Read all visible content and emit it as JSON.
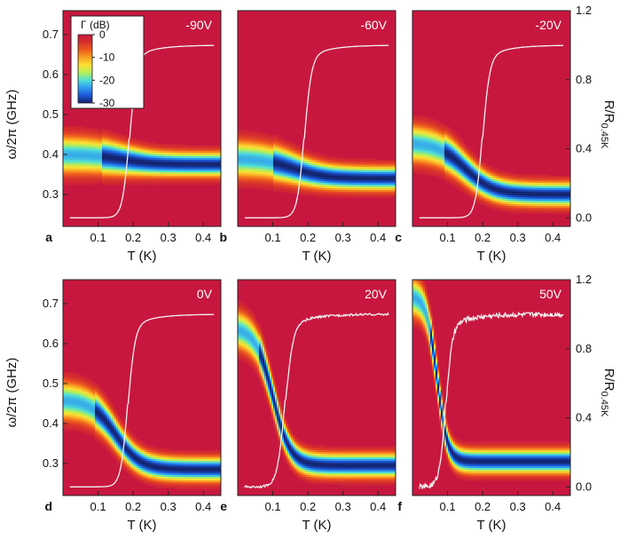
{
  "colors": {
    "background": "#C8173F",
    "trace": "#f2f2f2",
    "colormap": [
      "#14236e",
      "#1a56d6",
      "#2f9bf0",
      "#4fe0d6",
      "#b5ef57",
      "#fde033",
      "#f9a121",
      "#ed5a1e",
      "#d72f2c",
      "#c8173f"
    ]
  },
  "labels": {
    "ylabel_left": "ω/2π (GHz)",
    "ylabel_right_main": "R/R",
    "ylabel_right_sub": "0.45K",
    "xlabel": "T (K)"
  },
  "colorbar": {
    "title": "Γ (dB)",
    "range": [
      -30,
      0
    ],
    "ticks": [
      "0",
      "-10",
      "-20",
      "-30"
    ]
  },
  "chart_data": [
    {
      "type": "heatmap",
      "panel": "a",
      "voltage_label": "-90V",
      "xlabel": "T (K)",
      "ylabel": "ω/2π (GHz)",
      "y2label": "R/R0.45K",
      "xlim": [
        0.0,
        0.45
      ],
      "ylim": [
        0.22,
        0.76
      ],
      "y2lim": [
        -0.05,
        1.2
      ],
      "xticks": [
        "0.1",
        "0.2",
        "0.3",
        "0.4"
      ],
      "yticks": [
        "0.3",
        "0.4",
        "0.5",
        "0.6",
        "0.7"
      ],
      "y2ticks": [
        "0.0",
        "0.4",
        "0.8",
        "1.2"
      ],
      "resonance": {
        "f_low": 0.4,
        "f_high": 0.375,
        "Tc": 0.17,
        "width": 0.045,
        "depth": -30,
        "low_T_band": 0.11
      },
      "resistance": {
        "Tc": 0.19,
        "width": 0.01,
        "noise": 0.0
      },
      "colorbar": true
    },
    {
      "type": "heatmap",
      "panel": "b",
      "voltage_label": "-60V",
      "xlabel": "T (K)",
      "ylabel": "ω/2π (GHz)",
      "y2label": "R/R0.45K",
      "xlim": [
        0.0,
        0.45
      ],
      "ylim": [
        0.22,
        0.76
      ],
      "y2lim": [
        -0.05,
        1.2
      ],
      "xticks": [
        "0.1",
        "0.2",
        "0.3",
        "0.4"
      ],
      "yticks": [
        "0.3",
        "0.4",
        "0.5",
        "0.6",
        "0.7"
      ],
      "y2ticks": [
        "0.0",
        "0.4",
        "0.8",
        "1.2"
      ],
      "resonance": {
        "f_low": 0.39,
        "f_high": 0.34,
        "Tc": 0.16,
        "width": 0.045,
        "depth": -30,
        "low_T_band": 0.1
      },
      "resistance": {
        "Tc": 0.19,
        "width": 0.01,
        "noise": 0.0
      },
      "colorbar": false
    },
    {
      "type": "heatmap",
      "panel": "c",
      "voltage_label": "-20V",
      "xlabel": "T (K)",
      "ylabel": "ω/2π (GHz)",
      "y2label": "R/R0.45K",
      "xlim": [
        0.0,
        0.45
      ],
      "ylim": [
        0.22,
        0.76
      ],
      "y2lim": [
        -0.05,
        1.2
      ],
      "xticks": [
        "0.1",
        "0.2",
        "0.3",
        "0.4"
      ],
      "yticks": [
        "0.3",
        "0.4",
        "0.5",
        "0.6",
        "0.7"
      ],
      "y2ticks": [
        "0.0",
        "0.4",
        "0.8",
        "1.2"
      ],
      "resonance": {
        "f_low": 0.43,
        "f_high": 0.3,
        "Tc": 0.15,
        "width": 0.04,
        "depth": -30,
        "low_T_band": 0.09
      },
      "resistance": {
        "Tc": 0.2,
        "width": 0.01,
        "noise": 0.0
      },
      "colorbar": false
    },
    {
      "type": "heatmap",
      "panel": "d",
      "voltage_label": "0V",
      "xlabel": "T (K)",
      "ylabel": "ω/2π (GHz)",
      "y2label": "R/R0.45K",
      "xlim": [
        0.0,
        0.45
      ],
      "ylim": [
        0.22,
        0.76
      ],
      "y2lim": [
        -0.05,
        1.2
      ],
      "xticks": [
        "0.1",
        "0.2",
        "0.3",
        "0.4"
      ],
      "yticks": [
        "0.3",
        "0.4",
        "0.5",
        "0.6",
        "0.7"
      ],
      "y2ticks": [
        "0.0",
        "0.4",
        "0.8",
        "1.2"
      ],
      "resonance": {
        "f_low": 0.46,
        "f_high": 0.285,
        "Tc": 0.15,
        "width": 0.035,
        "depth": -30,
        "low_T_band": 0.09
      },
      "resistance": {
        "Tc": 0.185,
        "width": 0.01,
        "noise": 0.0
      },
      "colorbar": false
    },
    {
      "type": "heatmap",
      "panel": "e",
      "voltage_label": "20V",
      "xlabel": "T (K)",
      "ylabel": "ω/2π (GHz)",
      "y2label": "R/R0.45K",
      "xlim": [
        0.0,
        0.45
      ],
      "ylim": [
        0.22,
        0.76
      ],
      "y2lim": [
        -0.05,
        1.2
      ],
      "xticks": [
        "0.1",
        "0.2",
        "0.3",
        "0.4"
      ],
      "yticks": [
        "0.3",
        "0.4",
        "0.5",
        "0.6",
        "0.7"
      ],
      "y2ticks": [
        "0.0",
        "0.4",
        "0.8",
        "1.2"
      ],
      "resonance": {
        "f_low": 0.64,
        "f_high": 0.295,
        "Tc": 0.1,
        "width": 0.025,
        "depth": -30,
        "low_T_band": 0.06
      },
      "resistance": {
        "Tc": 0.135,
        "width": 0.011,
        "noise": 0.006
      },
      "colorbar": false
    },
    {
      "type": "heatmap",
      "panel": "f",
      "voltage_label": "50V",
      "xlabel": "T (K)",
      "ylabel": "ω/2π (GHz)",
      "y2label": "R/R0.45K",
      "xlim": [
        0.0,
        0.45
      ],
      "ylim": [
        0.22,
        0.76
      ],
      "y2lim": [
        -0.05,
        1.2
      ],
      "xticks": [
        "0.1",
        "0.2",
        "0.3",
        "0.4"
      ],
      "yticks": [
        "0.3",
        "0.4",
        "0.5",
        "0.6",
        "0.7"
      ],
      "y2ticks": [
        "0.0",
        "0.4",
        "0.8",
        "1.2"
      ],
      "resonance": {
        "f_low": 0.72,
        "f_high": 0.305,
        "Tc": 0.07,
        "width": 0.015,
        "depth": -30,
        "low_T_band": 0.05
      },
      "resistance": {
        "Tc": 0.095,
        "width": 0.009,
        "noise": 0.014
      },
      "colorbar": false
    }
  ]
}
